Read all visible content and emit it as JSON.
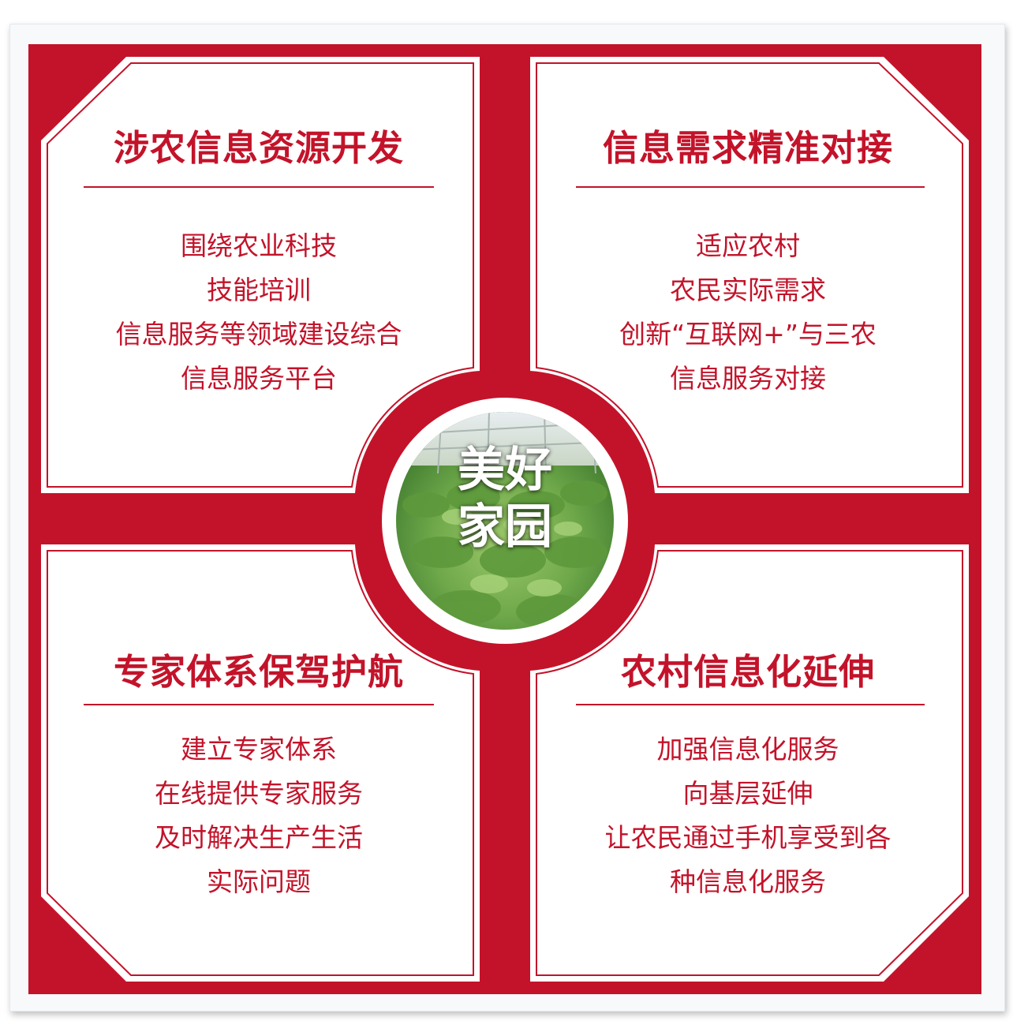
{
  "center": {
    "line1": "美好",
    "line2": "家园"
  },
  "quadrants": {
    "top_left": {
      "title": "涉农信息资源开发",
      "lines": [
        "围绕农业科技",
        "技能培训",
        "信息服务等领域建设综合",
        "信息服务平台"
      ]
    },
    "top_right": {
      "title": "信息需求精准对接",
      "lines": [
        "适应农村",
        "农民实际需求",
        "创新“互联网+”与三农",
        "信息服务对接"
      ]
    },
    "bottom_left": {
      "title": "专家体系保驾护航",
      "lines": [
        "建立专家体系",
        "在线提供专家服务",
        "及时解决生产生活",
        "实际问题"
      ]
    },
    "bottom_right": {
      "title": "农村信息化延伸",
      "lines": [
        "加强信息化服务",
        "向基层延伸",
        "让农民通过手机享受到各",
        "种信息化服务"
      ]
    }
  },
  "colors": {
    "accent": "#c3132a",
    "panel": "#ffffff",
    "background": "#f7f9fb",
    "center_photo_light": "#9cc86a",
    "center_photo_dark": "#4a8a34"
  }
}
